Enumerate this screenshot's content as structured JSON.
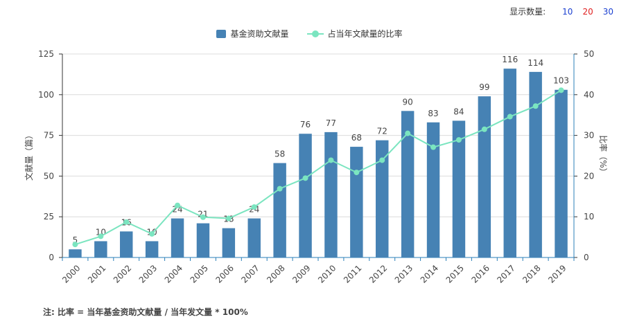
{
  "display_count": {
    "label": "显示数量:",
    "options": [
      {
        "label": "10",
        "color": "#1a3fd0"
      },
      {
        "label": "20",
        "color": "#e02020"
      },
      {
        "label": "30",
        "color": "#1a3fd0"
      }
    ]
  },
  "note": "注: 比率 = 当年基金资助文献量 / 当年发文量 * 100%",
  "chart_data": {
    "type": "bar",
    "categories": [
      "2000",
      "2001",
      "2002",
      "2003",
      "2004",
      "2005",
      "2006",
      "2007",
      "2008",
      "2009",
      "2010",
      "2011",
      "2012",
      "2013",
      "2014",
      "2015",
      "2016",
      "2017",
      "2018",
      "2019"
    ],
    "series": [
      {
        "name": "基金资助文献量",
        "type": "bar",
        "axis": "left",
        "color": "#4682b4",
        "values": [
          5,
          10,
          16,
          10,
          24,
          21,
          18,
          24,
          58,
          76,
          77,
          68,
          72,
          90,
          83,
          84,
          99,
          116,
          114,
          103
        ],
        "labels": [
          "5",
          "10",
          "16",
          "10",
          "24",
          "21",
          "18",
          "24",
          "58",
          "76",
          "77",
          "68",
          "72",
          "90",
          "83",
          "84",
          "99",
          "116",
          "114",
          "103"
        ]
      },
      {
        "name": "占当年文献量的比率",
        "type": "line",
        "axis": "right",
        "color": "#7be5c0",
        "values": [
          3.2,
          5.2,
          8.7,
          5.8,
          12.8,
          9.9,
          9.6,
          12.4,
          16.9,
          19.5,
          23.9,
          20.9,
          23.9,
          30.5,
          27.1,
          28.9,
          31.5,
          34.6,
          37.2,
          41.1
        ]
      }
    ],
    "y_left": {
      "label": "文献量（篇）",
      "ylim": [
        0,
        125
      ],
      "ticks": [
        0,
        25,
        50,
        75,
        100,
        125
      ]
    },
    "y_right": {
      "label": "比率（%）",
      "ylim": [
        0,
        50
      ],
      "ticks": [
        0,
        10,
        20,
        30,
        40,
        50
      ]
    },
    "grid": true,
    "legend_position": "top-center"
  }
}
